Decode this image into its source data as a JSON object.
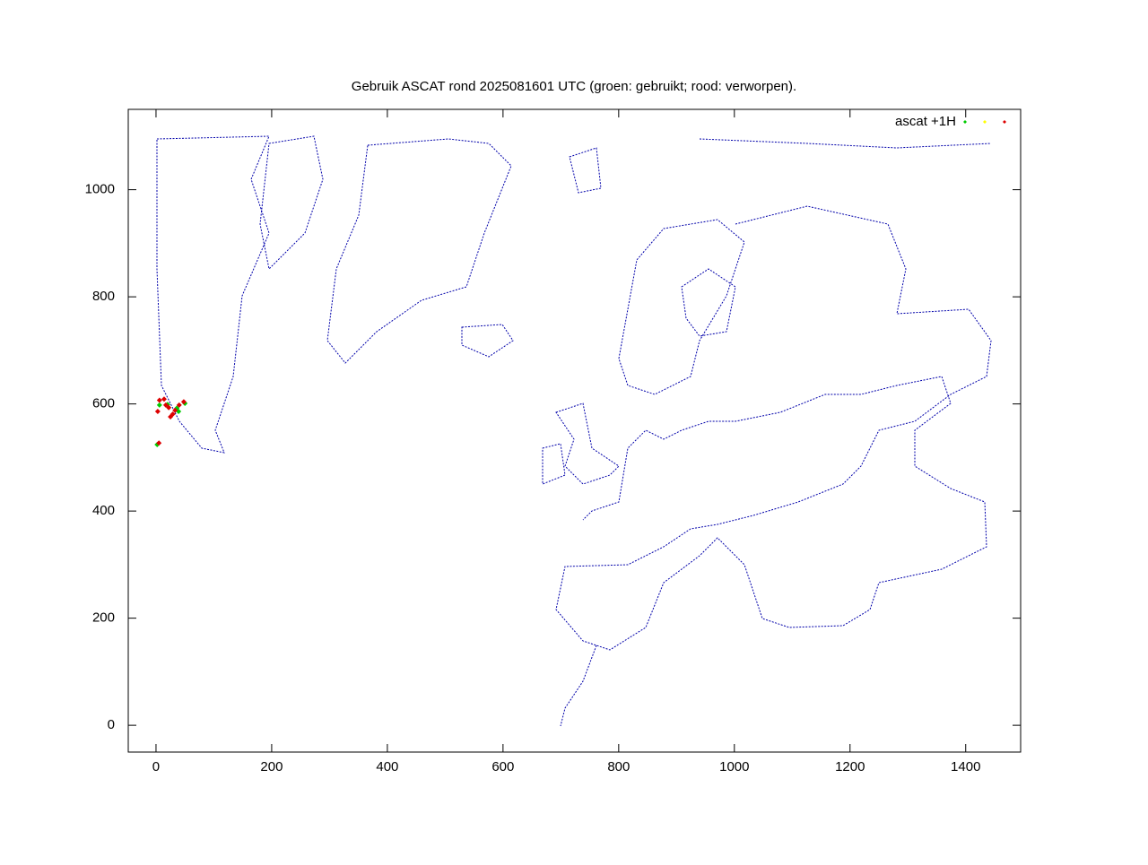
{
  "chart_data": {
    "type": "scatter",
    "title": "Gebruik ASCAT rond 2025081601 UTC (groen: gebruikt; rood: verworpen).",
    "xlim": [
      -48,
      1495
    ],
    "ylim": [
      -50,
      1150
    ],
    "xticks": [
      0,
      200,
      400,
      600,
      800,
      1000,
      1200,
      1400
    ],
    "yticks": [
      0,
      200,
      400,
      600,
      800,
      1000
    ],
    "legend": "top-right",
    "series": [
      {
        "name": "ascat +1H",
        "color": "#00cc00",
        "x": [
          6,
          39,
          50,
          2,
          20,
          36
        ],
        "y": [
          598,
          586,
          601,
          524,
          599,
          592
        ]
      },
      {
        "color": "#ffff00",
        "x": [],
        "y": []
      },
      {
        "color": "#dd0000",
        "x": [
          6,
          17,
          33,
          25,
          3,
          40,
          48,
          5,
          29,
          14,
          22
        ],
        "y": [
          607,
          598,
          588,
          576,
          586,
          598,
          604,
          527,
          581,
          609,
          593
        ]
      }
    ]
  }
}
